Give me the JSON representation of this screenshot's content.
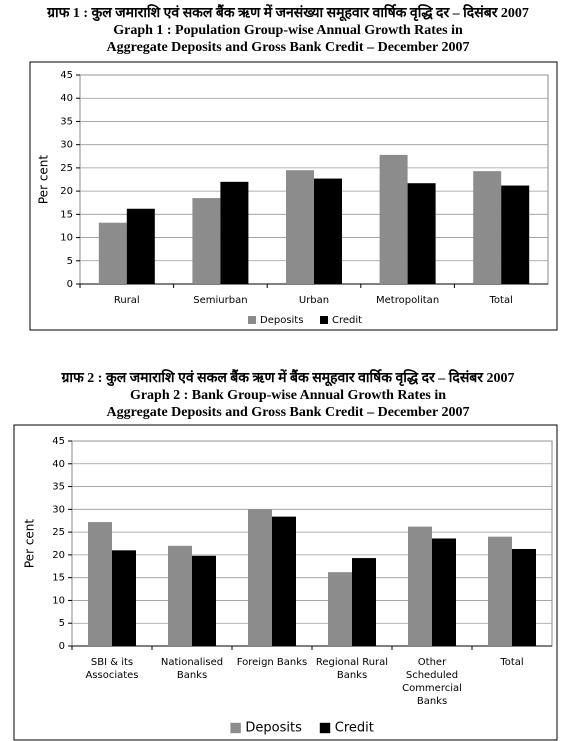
{
  "chart_data": [
    {
      "type": "bar",
      "title_lines": [
        "ग्राफ 1 : कुल जमाराशि एवं सकल बैंक ऋण में जनसंख्या समूहवार वार्षिक वृद्धि दर – दिसंबर 2007",
        "Graph 1 : Population Group-wise Annual Growth Rates in",
        "Aggregate Deposits and Gross Bank Credit – December 2007"
      ],
      "ylabel": "Per cent",
      "categories": [
        [
          "Rural"
        ],
        [
          "Semiurban"
        ],
        [
          "Urban"
        ],
        [
          "Metropolitan"
        ],
        [
          "Total"
        ]
      ],
      "series": [
        {
          "name": "Deposits",
          "color": "#8c8c8c",
          "values": [
            13.2,
            18.5,
            24.5,
            27.8,
            24.3
          ]
        },
        {
          "name": "Credit",
          "color": "#000000",
          "values": [
            16.2,
            22.0,
            22.7,
            21.7,
            21.2
          ]
        }
      ],
      "ylim": [
        0,
        45
      ],
      "yticks": [
        0,
        5,
        10,
        15,
        20,
        25,
        30,
        35,
        40,
        45
      ],
      "grid": true,
      "legend": "bottom"
    },
    {
      "type": "bar",
      "title_lines": [
        "ग्राफ 2 : कुल जमाराशि एवं सकल बैंक ऋण में बैंक समूहवार वार्षिक वृद्धि दर – दिसंबर 2007",
        "Graph 2 : Bank Group-wise Annual Growth Rates in",
        "Aggregate Deposits and Gross Bank Credit – December 2007"
      ],
      "ylabel": "Per cent",
      "categories": [
        [
          "SBI & its",
          "Associates"
        ],
        [
          "Nationalised",
          "Banks"
        ],
        [
          "Foreign Banks"
        ],
        [
          "Regional Rural",
          "Banks"
        ],
        [
          "Other",
          "Scheduled",
          "Commercial",
          "Banks"
        ],
        [
          "Total"
        ]
      ],
      "series": [
        {
          "name": "Deposits",
          "color": "#8c8c8c",
          "values": [
            27.2,
            22.0,
            30.0,
            16.2,
            26.2,
            24.0
          ]
        },
        {
          "name": "Credit",
          "color": "#000000",
          "values": [
            21.0,
            19.8,
            28.4,
            19.3,
            23.6,
            21.3
          ]
        }
      ],
      "ylim": [
        0,
        45
      ],
      "yticks": [
        0,
        5,
        10,
        15,
        20,
        25,
        30,
        35,
        40,
        45
      ],
      "grid": true,
      "legend": "bottom"
    }
  ]
}
